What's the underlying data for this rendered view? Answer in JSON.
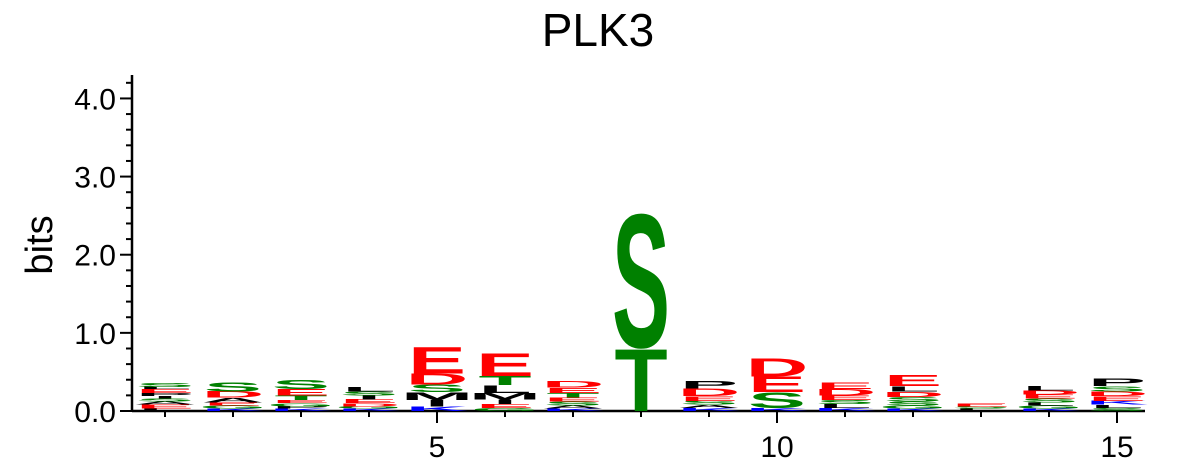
{
  "chart_data": {
    "type": "sequence-logo",
    "title": "PLK3",
    "ylabel": "bits",
    "ylim": [
      0,
      4.3
    ],
    "y_ticks": [
      "0.0",
      "1.0",
      "2.0",
      "3.0",
      "4.0"
    ],
    "x_ticks": [
      5,
      10,
      15
    ],
    "positions": [
      1,
      2,
      3,
      4,
      5,
      6,
      7,
      8,
      9,
      10,
      11,
      12,
      13,
      14,
      15
    ],
    "colors": {
      "acidic": "#ff0000",
      "polar": "#008000",
      "hydrophobic": "#000000",
      "basic": "#0000ff",
      "other": "#800080"
    },
    "stacks": [
      [
        {
          "l": "L",
          "h": 0.03
        },
        {
          "l": "E",
          "h": 0.05
        },
        {
          "l": "A",
          "h": 0.04
        },
        {
          "l": "S",
          "h": 0.04
        },
        {
          "l": "I",
          "h": 0.03
        },
        {
          "l": "P",
          "h": 0.04
        },
        {
          "l": "E",
          "h": 0.05
        },
        {
          "l": "L",
          "h": 0.03
        },
        {
          "l": "S",
          "h": 0.05
        }
      ],
      [
        {
          "l": "K",
          "h": 0.03
        },
        {
          "l": "G",
          "h": 0.04
        },
        {
          "l": "E",
          "h": 0.04
        },
        {
          "l": "A",
          "h": 0.06
        },
        {
          "l": "D",
          "h": 0.08
        },
        {
          "l": "S",
          "h": 0.12
        }
      ],
      [
        {
          "l": "K",
          "h": 0.03
        },
        {
          "l": "P",
          "h": 0.03
        },
        {
          "l": "G",
          "h": 0.04
        },
        {
          "l": "E",
          "h": 0.04
        },
        {
          "l": "T",
          "h": 0.06
        },
        {
          "l": "E",
          "h": 0.08
        },
        {
          "l": "S",
          "h": 0.12
        }
      ],
      [
        {
          "l": "K",
          "h": 0.03
        },
        {
          "l": "G",
          "h": 0.03
        },
        {
          "l": "D",
          "h": 0.04
        },
        {
          "l": "E",
          "h": 0.05
        },
        {
          "l": "I",
          "h": 0.05
        },
        {
          "l": "S",
          "h": 0.05
        },
        {
          "l": "L",
          "h": 0.06
        }
      ],
      [
        {
          "l": "K",
          "h": 0.06
        },
        {
          "l": "I",
          "h": 0.08
        },
        {
          "l": "M",
          "h": 0.1
        },
        {
          "l": "S",
          "h": 0.1
        },
        {
          "l": "D",
          "h": 0.14
        },
        {
          "l": "E",
          "h": 0.35
        }
      ],
      [
        {
          "l": "G",
          "h": 0.04
        },
        {
          "l": "E",
          "h": 0.05
        },
        {
          "l": "I",
          "h": 0.06
        },
        {
          "l": "M",
          "h": 0.08
        },
        {
          "l": "L",
          "h": 0.1
        },
        {
          "l": "T",
          "h": 0.12
        },
        {
          "l": "E",
          "h": 0.3
        }
      ],
      [
        {
          "l": "K",
          "h": 0.03
        },
        {
          "l": "A",
          "h": 0.04
        },
        {
          "l": "S",
          "h": 0.05
        },
        {
          "l": "E",
          "h": 0.05
        },
        {
          "l": "T",
          "h": 0.06
        },
        {
          "l": "E",
          "h": 0.07
        },
        {
          "l": "D",
          "h": 0.08
        }
      ],
      [
        {
          "l": "T",
          "h": 0.82
        },
        {
          "l": "S",
          "h": 1.75
        }
      ],
      [
        {
          "l": "K",
          "h": 0.04
        },
        {
          "l": "A",
          "h": 0.04
        },
        {
          "l": "S",
          "h": 0.05
        },
        {
          "l": "E",
          "h": 0.06
        },
        {
          "l": "D",
          "h": 0.1
        },
        {
          "l": "P",
          "h": 0.1
        }
      ],
      [
        {
          "l": "K",
          "h": 0.04
        },
        {
          "l": "S",
          "h": 0.2
        },
        {
          "l": "E",
          "h": 0.2
        },
        {
          "l": "D",
          "h": 0.24
        }
      ],
      [
        {
          "l": "K",
          "h": 0.04
        },
        {
          "l": "L",
          "h": 0.05
        },
        {
          "l": "S",
          "h": 0.05
        },
        {
          "l": "E",
          "h": 0.06
        },
        {
          "l": "D",
          "h": 0.08
        },
        {
          "l": "E",
          "h": 0.08
        }
      ],
      [
        {
          "l": "K",
          "h": 0.03
        },
        {
          "l": "G",
          "h": 0.04
        },
        {
          "l": "S",
          "h": 0.05
        },
        {
          "l": "S",
          "h": 0.06
        },
        {
          "l": "D",
          "h": 0.07
        },
        {
          "l": "L",
          "h": 0.07
        },
        {
          "l": "E",
          "h": 0.14
        }
      ],
      [
        {
          "l": "L",
          "h": 0.03
        },
        {
          "l": "S",
          "h": 0.03
        },
        {
          "l": "E",
          "h": 0.04
        }
      ],
      [
        {
          "l": "K",
          "h": 0.03
        },
        {
          "l": "G",
          "h": 0.04
        },
        {
          "l": "L",
          "h": 0.04
        },
        {
          "l": "S",
          "h": 0.05
        },
        {
          "l": "E",
          "h": 0.05
        },
        {
          "l": "D",
          "h": 0.05
        },
        {
          "l": "L",
          "h": 0.06
        }
      ],
      [
        {
          "l": "S",
          "h": 0.04
        },
        {
          "l": "L",
          "h": 0.04
        },
        {
          "l": "K",
          "h": 0.05
        },
        {
          "l": "E",
          "h": 0.06
        },
        {
          "l": "D",
          "h": 0.06
        },
        {
          "l": "S",
          "h": 0.07
        },
        {
          "l": "P",
          "h": 0.1
        }
      ]
    ]
  }
}
